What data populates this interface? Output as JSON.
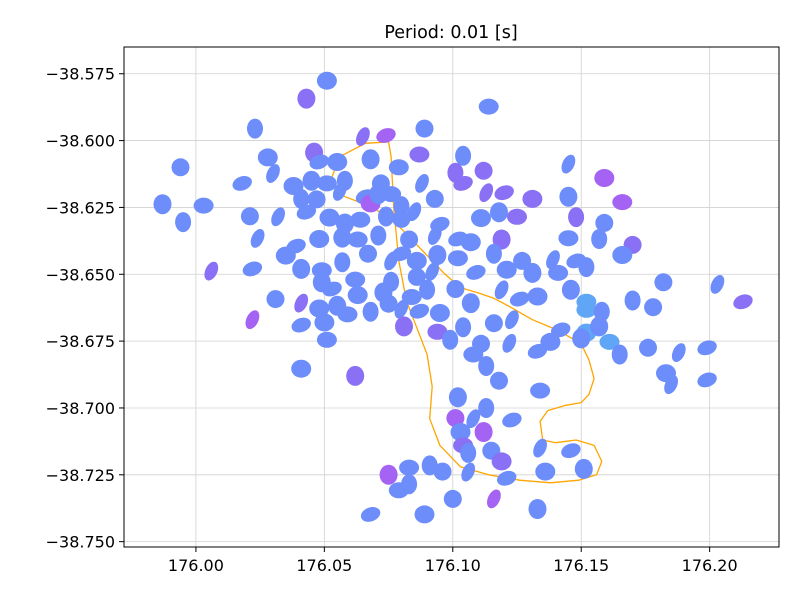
{
  "chart_data": {
    "type": "scatter",
    "title": "Period: 0.01 [s]",
    "xlabel": "",
    "ylabel": "",
    "xlim": [
      175.972,
      176.227
    ],
    "ylim": [
      -38.752,
      -38.565
    ],
    "x_ticks": [
      176.0,
      176.05,
      176.1,
      176.15,
      176.2
    ],
    "x_tick_labels": [
      "176.00",
      "176.05",
      "176.10",
      "176.15",
      "176.20"
    ],
    "y_ticks": [
      -38.575,
      -38.6,
      -38.625,
      -38.65,
      -38.675,
      -38.7,
      -38.725,
      -38.75
    ],
    "y_tick_labels": [
      "−38.575",
      "−38.600",
      "−38.625",
      "−38.650",
      "−38.675",
      "−38.700",
      "−38.725",
      "−38.750"
    ],
    "grid": true,
    "legend": "none",
    "colors": {
      "blue": "#6c8dfa",
      "light_blue": "#5fa6f6",
      "purple": "#8a70f4",
      "violet": "#a463f2",
      "outline": "#ffa500",
      "grid": "#d0d0d0"
    },
    "outline": {
      "x": [
        176.075,
        176.066,
        176.056,
        176.052,
        176.058,
        176.069,
        176.079,
        176.088,
        176.097,
        176.103,
        176.11,
        176.116,
        176.122,
        176.131,
        176.141,
        176.15,
        176.153,
        176.155,
        176.153,
        176.15,
        176.144,
        176.137,
        176.134,
        176.135,
        176.14,
        176.148,
        176.155,
        176.158,
        176.156,
        176.149,
        176.138,
        176.126,
        176.114,
        176.103,
        176.095,
        176.091,
        176.092,
        176.09,
        176.086,
        176.082,
        176.079,
        176.077,
        176.076
      ],
      "y": [
        -38.6005,
        -38.601,
        -38.606,
        -38.616,
        -38.621,
        -38.625,
        -38.632,
        -38.641,
        -38.65,
        -38.655,
        -38.657,
        -38.659,
        -38.662,
        -38.667,
        -38.671,
        -38.676,
        -38.682,
        -38.689,
        -38.695,
        -38.698,
        -38.699,
        -38.701,
        -38.705,
        -38.712,
        -38.713,
        -38.712,
        -38.714,
        -38.72,
        -38.725,
        -38.727,
        -38.728,
        -38.727,
        -38.725,
        -38.722,
        -38.714,
        -38.704,
        -38.692,
        -38.68,
        -38.67,
        -38.66,
        -38.645,
        -38.625,
        -38.606
      ]
    },
    "points": [
      {
        "x": 176.051,
        "y": -38.5776,
        "c": "blue"
      },
      {
        "x": 176.043,
        "y": -38.5843,
        "c": "purple"
      },
      {
        "x": 176.114,
        "y": -38.5873,
        "c": "blue"
      },
      {
        "x": 176.023,
        "y": -38.5955,
        "c": "blue"
      },
      {
        "x": 176.089,
        "y": -38.5955,
        "c": "blue"
      },
      {
        "x": 176.065,
        "y": -38.5985,
        "c": "purple"
      },
      {
        "x": 176.074,
        "y": -38.5981,
        "c": "violet"
      },
      {
        "x": 176.028,
        "y": -38.6063,
        "c": "blue"
      },
      {
        "x": 176.046,
        "y": -38.6045,
        "c": "purple"
      },
      {
        "x": 176.087,
        "y": -38.6052,
        "c": "purple"
      },
      {
        "x": 176.104,
        "y": -38.6057,
        "c": "blue"
      },
      {
        "x": 175.994,
        "y": -38.61,
        "c": "blue"
      },
      {
        "x": 176.03,
        "y": -38.6123,
        "c": "blue"
      },
      {
        "x": 176.048,
        "y": -38.608,
        "c": "blue"
      },
      {
        "x": 176.055,
        "y": -38.608,
        "c": "blue"
      },
      {
        "x": 176.068,
        "y": -38.607,
        "c": "blue"
      },
      {
        "x": 176.079,
        "y": -38.61,
        "c": "blue"
      },
      {
        "x": 176.101,
        "y": -38.612,
        "c": "purple"
      },
      {
        "x": 176.112,
        "y": -38.6113,
        "c": "purple"
      },
      {
        "x": 176.145,
        "y": -38.6088,
        "c": "blue"
      },
      {
        "x": 176.018,
        "y": -38.616,
        "c": "blue"
      },
      {
        "x": 176.038,
        "y": -38.617,
        "c": "blue"
      },
      {
        "x": 176.045,
        "y": -38.615,
        "c": "blue"
      },
      {
        "x": 176.051,
        "y": -38.616,
        "c": "blue"
      },
      {
        "x": 176.058,
        "y": -38.615,
        "c": "blue"
      },
      {
        "x": 176.072,
        "y": -38.616,
        "c": "blue"
      },
      {
        "x": 176.088,
        "y": -38.616,
        "c": "blue"
      },
      {
        "x": 176.104,
        "y": -38.616,
        "c": "purple"
      },
      {
        "x": 176.159,
        "y": -38.614,
        "c": "violet"
      },
      {
        "x": 175.987,
        "y": -38.6238,
        "c": "blue"
      },
      {
        "x": 176.003,
        "y": -38.6243,
        "c": "blue"
      },
      {
        "x": 176.041,
        "y": -38.6218,
        "c": "blue"
      },
      {
        "x": 176.047,
        "y": -38.622,
        "c": "blue"
      },
      {
        "x": 176.056,
        "y": -38.619,
        "c": "blue"
      },
      {
        "x": 176.066,
        "y": -38.621,
        "c": "blue"
      },
      {
        "x": 176.068,
        "y": -38.6235,
        "c": "violet"
      },
      {
        "x": 176.071,
        "y": -38.62,
        "c": "blue"
      },
      {
        "x": 176.076,
        "y": -38.62,
        "c": "blue"
      },
      {
        "x": 176.08,
        "y": -38.6245,
        "c": "blue"
      },
      {
        "x": 176.093,
        "y": -38.6218,
        "c": "blue"
      },
      {
        "x": 176.113,
        "y": -38.6195,
        "c": "purple"
      },
      {
        "x": 176.12,
        "y": -38.6195,
        "c": "purple"
      },
      {
        "x": 176.131,
        "y": -38.6218,
        "c": "purple"
      },
      {
        "x": 176.145,
        "y": -38.621,
        "c": "blue"
      },
      {
        "x": 176.166,
        "y": -38.623,
        "c": "violet"
      },
      {
        "x": 175.995,
        "y": -38.6305,
        "c": "blue"
      },
      {
        "x": 176.021,
        "y": -38.6283,
        "c": "blue"
      },
      {
        "x": 176.032,
        "y": -38.6285,
        "c": "blue"
      },
      {
        "x": 176.043,
        "y": -38.6268,
        "c": "blue"
      },
      {
        "x": 176.052,
        "y": -38.6288,
        "c": "blue"
      },
      {
        "x": 176.058,
        "y": -38.631,
        "c": "blue"
      },
      {
        "x": 176.064,
        "y": -38.6296,
        "c": "blue"
      },
      {
        "x": 176.074,
        "y": -38.6284,
        "c": "blue"
      },
      {
        "x": 176.08,
        "y": -38.6293,
        "c": "blue"
      },
      {
        "x": 176.085,
        "y": -38.6266,
        "c": "blue"
      },
      {
        "x": 176.095,
        "y": -38.6313,
        "c": "blue"
      },
      {
        "x": 176.111,
        "y": -38.629,
        "c": "blue"
      },
      {
        "x": 176.118,
        "y": -38.6268,
        "c": "blue"
      },
      {
        "x": 176.125,
        "y": -38.6285,
        "c": "purple"
      },
      {
        "x": 176.148,
        "y": -38.6286,
        "c": "purple"
      },
      {
        "x": 176.159,
        "y": -38.6308,
        "c": "blue"
      },
      {
        "x": 176.024,
        "y": -38.6366,
        "c": "blue"
      },
      {
        "x": 176.039,
        "y": -38.6395,
        "c": "blue"
      },
      {
        "x": 176.048,
        "y": -38.6368,
        "c": "blue"
      },
      {
        "x": 176.057,
        "y": -38.6363,
        "c": "blue"
      },
      {
        "x": 176.063,
        "y": -38.637,
        "c": "blue"
      },
      {
        "x": 176.071,
        "y": -38.6355,
        "c": "blue"
      },
      {
        "x": 176.083,
        "y": -38.637,
        "c": "blue"
      },
      {
        "x": 176.093,
        "y": -38.6355,
        "c": "blue"
      },
      {
        "x": 176.102,
        "y": -38.6368,
        "c": "blue"
      },
      {
        "x": 176.107,
        "y": -38.638,
        "c": "blue"
      },
      {
        "x": 176.119,
        "y": -38.637,
        "c": "purple"
      },
      {
        "x": 176.145,
        "y": -38.6365,
        "c": "blue"
      },
      {
        "x": 176.157,
        "y": -38.6368,
        "c": "blue"
      },
      {
        "x": 176.17,
        "y": -38.639,
        "c": "purple"
      },
      {
        "x": 176.006,
        "y": -38.6488,
        "c": "purple"
      },
      {
        "x": 176.022,
        "y": -38.648,
        "c": "blue"
      },
      {
        "x": 176.035,
        "y": -38.643,
        "c": "blue"
      },
      {
        "x": 176.041,
        "y": -38.648,
        "c": "blue"
      },
      {
        "x": 176.049,
        "y": -38.6485,
        "c": "blue"
      },
      {
        "x": 176.057,
        "y": -38.6455,
        "c": "blue"
      },
      {
        "x": 176.067,
        "y": -38.6423,
        "c": "blue"
      },
      {
        "x": 176.076,
        "y": -38.645,
        "c": "blue"
      },
      {
        "x": 176.08,
        "y": -38.6423,
        "c": "blue"
      },
      {
        "x": 176.086,
        "y": -38.645,
        "c": "blue"
      },
      {
        "x": 176.094,
        "y": -38.6428,
        "c": "blue"
      },
      {
        "x": 176.102,
        "y": -38.644,
        "c": "blue"
      },
      {
        "x": 176.116,
        "y": -38.6423,
        "c": "blue"
      },
      {
        "x": 176.127,
        "y": -38.645,
        "c": "blue"
      },
      {
        "x": 176.139,
        "y": -38.6445,
        "c": "blue"
      },
      {
        "x": 176.148,
        "y": -38.645,
        "c": "blue"
      },
      {
        "x": 176.166,
        "y": -38.6428,
        "c": "blue"
      },
      {
        "x": 176.049,
        "y": -38.653,
        "c": "blue"
      },
      {
        "x": 176.062,
        "y": -38.652,
        "c": "blue"
      },
      {
        "x": 176.076,
        "y": -38.6528,
        "c": "blue"
      },
      {
        "x": 176.086,
        "y": -38.651,
        "c": "blue"
      },
      {
        "x": 176.092,
        "y": -38.649,
        "c": "blue"
      },
      {
        "x": 176.109,
        "y": -38.6493,
        "c": "blue"
      },
      {
        "x": 176.121,
        "y": -38.6483,
        "c": "blue"
      },
      {
        "x": 176.131,
        "y": -38.6495,
        "c": "blue"
      },
      {
        "x": 176.141,
        "y": -38.6495,
        "c": "blue"
      },
      {
        "x": 176.152,
        "y": -38.6473,
        "c": "blue"
      },
      {
        "x": 176.031,
        "y": -38.6593,
        "c": "blue"
      },
      {
        "x": 176.041,
        "y": -38.6608,
        "c": "purple"
      },
      {
        "x": 176.053,
        "y": -38.6555,
        "c": "blue"
      },
      {
        "x": 176.063,
        "y": -38.6578,
        "c": "blue"
      },
      {
        "x": 176.073,
        "y": -38.6568,
        "c": "blue"
      },
      {
        "x": 176.084,
        "y": -38.6585,
        "c": "blue"
      },
      {
        "x": 176.09,
        "y": -38.6558,
        "c": "blue"
      },
      {
        "x": 176.101,
        "y": -38.6555,
        "c": "blue"
      },
      {
        "x": 176.119,
        "y": -38.6558,
        "c": "blue"
      },
      {
        "x": 176.126,
        "y": -38.6593,
        "c": "blue"
      },
      {
        "x": 176.133,
        "y": -38.6583,
        "c": "blue"
      },
      {
        "x": 176.146,
        "y": -38.6558,
        "c": "blue"
      },
      {
        "x": 176.152,
        "y": -38.6603,
        "c": "light_blue"
      },
      {
        "x": 176.17,
        "y": -38.6598,
        "c": "blue"
      },
      {
        "x": 176.182,
        "y": -38.653,
        "c": "blue"
      },
      {
        "x": 176.203,
        "y": -38.6538,
        "c": "blue"
      },
      {
        "x": 176.213,
        "y": -38.6603,
        "c": "purple"
      },
      {
        "x": 176.048,
        "y": -38.6628,
        "c": "blue"
      },
      {
        "x": 176.055,
        "y": -38.6618,
        "c": "blue"
      },
      {
        "x": 176.059,
        "y": -38.665,
        "c": "blue"
      },
      {
        "x": 176.068,
        "y": -38.664,
        "c": "blue"
      },
      {
        "x": 176.075,
        "y": -38.661,
        "c": "blue"
      },
      {
        "x": 176.08,
        "y": -38.663,
        "c": "blue"
      },
      {
        "x": 176.087,
        "y": -38.6638,
        "c": "blue"
      },
      {
        "x": 176.095,
        "y": -38.6645,
        "c": "blue"
      },
      {
        "x": 176.107,
        "y": -38.6608,
        "c": "blue"
      },
      {
        "x": 176.152,
        "y": -38.6633,
        "c": "light_blue"
      },
      {
        "x": 176.158,
        "y": -38.664,
        "c": "blue"
      },
      {
        "x": 176.178,
        "y": -38.6623,
        "c": "blue"
      },
      {
        "x": 176.022,
        "y": -38.667,
        "c": "violet"
      },
      {
        "x": 176.041,
        "y": -38.669,
        "c": "blue"
      },
      {
        "x": 176.05,
        "y": -38.668,
        "c": "blue"
      },
      {
        "x": 176.081,
        "y": -38.6695,
        "c": "purple"
      },
      {
        "x": 176.094,
        "y": -38.6715,
        "c": "purple"
      },
      {
        "x": 176.104,
        "y": -38.6698,
        "c": "blue"
      },
      {
        "x": 176.116,
        "y": -38.6683,
        "c": "blue"
      },
      {
        "x": 176.123,
        "y": -38.667,
        "c": "blue"
      },
      {
        "x": 176.142,
        "y": -38.6708,
        "c": "blue"
      },
      {
        "x": 176.152,
        "y": -38.6718,
        "c": "light_blue"
      },
      {
        "x": 176.157,
        "y": -38.6695,
        "c": "blue"
      },
      {
        "x": 176.051,
        "y": -38.6745,
        "c": "blue"
      },
      {
        "x": 176.099,
        "y": -38.6745,
        "c": "blue"
      },
      {
        "x": 176.111,
        "y": -38.676,
        "c": "blue"
      },
      {
        "x": 176.122,
        "y": -38.6758,
        "c": "blue"
      },
      {
        "x": 176.133,
        "y": -38.6788,
        "c": "blue"
      },
      {
        "x": 176.138,
        "y": -38.6753,
        "c": "blue"
      },
      {
        "x": 176.15,
        "y": -38.674,
        "c": "blue"
      },
      {
        "x": 176.161,
        "y": -38.6753,
        "c": "light_blue"
      },
      {
        "x": 176.165,
        "y": -38.68,
        "c": "blue"
      },
      {
        "x": 176.176,
        "y": -38.6775,
        "c": "blue"
      },
      {
        "x": 176.188,
        "y": -38.6793,
        "c": "blue"
      },
      {
        "x": 176.199,
        "y": -38.6775,
        "c": "blue"
      },
      {
        "x": 176.041,
        "y": -38.6853,
        "c": "blue"
      },
      {
        "x": 176.062,
        "y": -38.688,
        "c": "purple"
      },
      {
        "x": 176.108,
        "y": -38.68,
        "c": "blue"
      },
      {
        "x": 176.113,
        "y": -38.6843,
        "c": "blue"
      },
      {
        "x": 176.118,
        "y": -38.6898,
        "c": "blue"
      },
      {
        "x": 176.185,
        "y": -38.6913,
        "c": "blue"
      },
      {
        "x": 176.199,
        "y": -38.6895,
        "c": "blue"
      },
      {
        "x": 176.183,
        "y": -38.687,
        "c": "blue"
      },
      {
        "x": 176.102,
        "y": -38.696,
        "c": "blue"
      },
      {
        "x": 176.134,
        "y": -38.6935,
        "c": "blue"
      },
      {
        "x": 176.113,
        "y": -38.7,
        "c": "blue"
      },
      {
        "x": 176.101,
        "y": -38.7038,
        "c": "violet"
      },
      {
        "x": 176.108,
        "y": -38.704,
        "c": "blue"
      },
      {
        "x": 176.123,
        "y": -38.7045,
        "c": "blue"
      },
      {
        "x": 176.103,
        "y": -38.709,
        "c": "blue"
      },
      {
        "x": 176.112,
        "y": -38.709,
        "c": "violet"
      },
      {
        "x": 176.104,
        "y": -38.714,
        "c": "purple"
      },
      {
        "x": 176.106,
        "y": -38.7168,
        "c": "blue"
      },
      {
        "x": 176.115,
        "y": -38.716,
        "c": "blue"
      },
      {
        "x": 176.134,
        "y": -38.715,
        "c": "blue"
      },
      {
        "x": 176.146,
        "y": -38.716,
        "c": "blue"
      },
      {
        "x": 176.119,
        "y": -38.72,
        "c": "purple"
      },
      {
        "x": 176.075,
        "y": -38.725,
        "c": "violet"
      },
      {
        "x": 176.083,
        "y": -38.7223,
        "c": "blue"
      },
      {
        "x": 176.091,
        "y": -38.7215,
        "c": "blue"
      },
      {
        "x": 176.096,
        "y": -38.7238,
        "c": "blue"
      },
      {
        "x": 176.106,
        "y": -38.724,
        "c": "blue"
      },
      {
        "x": 176.121,
        "y": -38.7263,
        "c": "blue"
      },
      {
        "x": 176.136,
        "y": -38.7238,
        "c": "blue"
      },
      {
        "x": 176.151,
        "y": -38.7228,
        "c": "blue"
      },
      {
        "x": 176.079,
        "y": -38.7308,
        "c": "blue"
      },
      {
        "x": 176.083,
        "y": -38.7285,
        "c": "blue"
      },
      {
        "x": 176.1,
        "y": -38.734,
        "c": "blue"
      },
      {
        "x": 176.116,
        "y": -38.734,
        "c": "violet"
      },
      {
        "x": 176.068,
        "y": -38.7398,
        "c": "blue"
      },
      {
        "x": 176.089,
        "y": -38.7398,
        "c": "blue"
      },
      {
        "x": 176.133,
        "y": -38.7378,
        "c": "blue"
      }
    ]
  }
}
